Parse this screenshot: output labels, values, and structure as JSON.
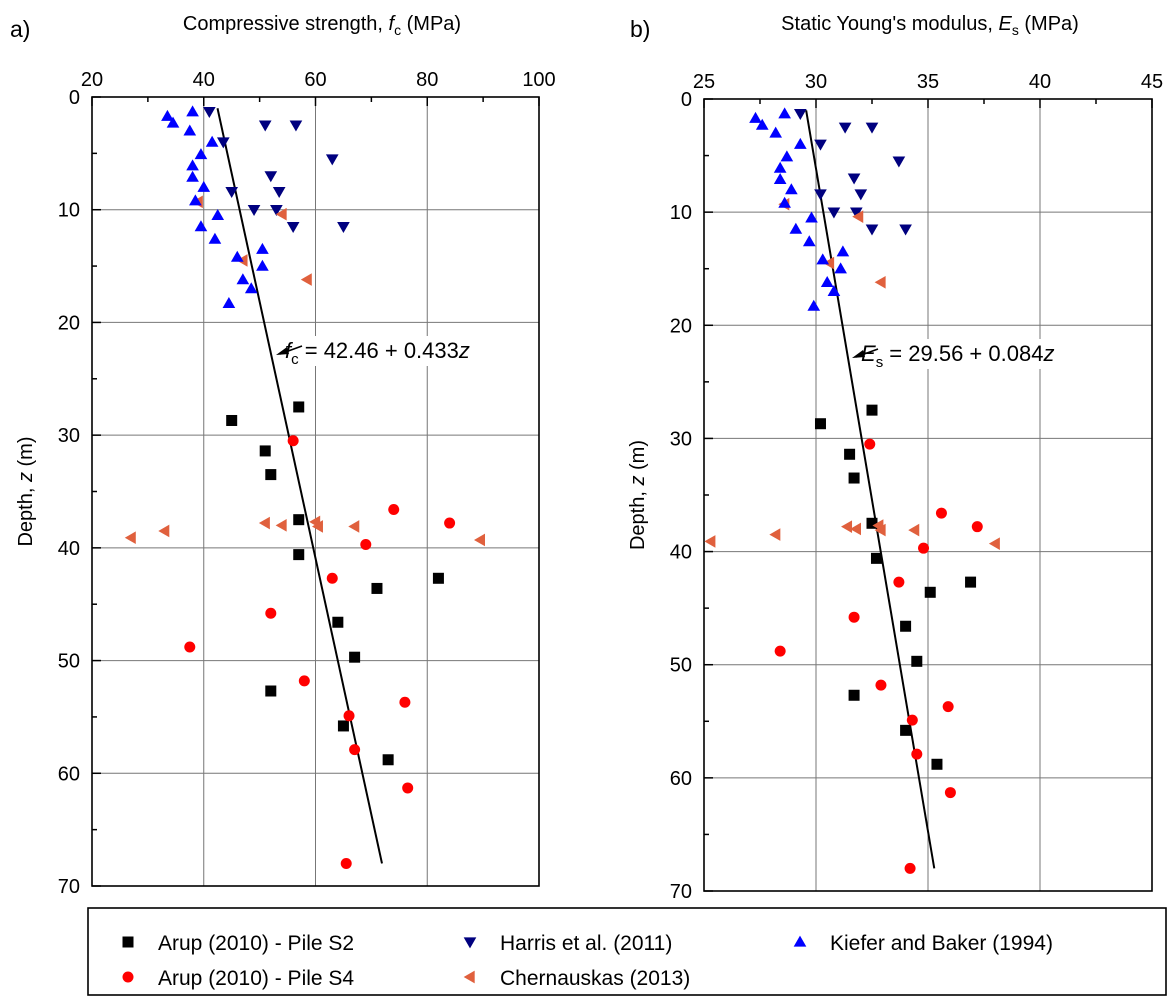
{
  "chart_data": [
    {
      "type": "scatter",
      "panel": "a)",
      "title": "",
      "xlabel_parts": [
        "Compressive strength, ",
        "f",
        "c",
        " (MPa)"
      ],
      "ylabel_parts": [
        "Depth, ",
        "z",
        " (m)"
      ],
      "x_axis_position": "top",
      "y_reversed": true,
      "xlim": [
        20,
        100
      ],
      "ylim": [
        0,
        70
      ],
      "xticks": [
        "20",
        "40",
        "60",
        "80",
        "100"
      ],
      "yticks": [
        "0",
        "10",
        "20",
        "30",
        "40",
        "50",
        "60",
        "70"
      ],
      "grid": true,
      "fit_line": {
        "x1": 42.46,
        "y1": 1,
        "x2": 71.9,
        "y2": 68
      },
      "equation_parts": [
        "f",
        "c",
        " = 42.46 + 0.433",
        "z"
      ],
      "series": [
        {
          "name": "Arup (2010) - Pile S2",
          "marker": "square",
          "color": "#000000",
          "points": [
            [
              57,
              27.5
            ],
            [
              45,
              28.7
            ],
            [
              51,
              31.4
            ],
            [
              52,
              33.5
            ],
            [
              57,
              37.5
            ],
            [
              57,
              40.6
            ],
            [
              82,
              42.7
            ],
            [
              71,
              43.6
            ],
            [
              64,
              46.6
            ],
            [
              67,
              49.7
            ],
            [
              52,
              52.7
            ],
            [
              65,
              55.8
            ],
            [
              73,
              58.8
            ]
          ]
        },
        {
          "name": "Arup (2010) - Pile S4",
          "marker": "circle",
          "color": "#ff0000",
          "points": [
            [
              56,
              30.5
            ],
            [
              74,
              36.6
            ],
            [
              84,
              37.8
            ],
            [
              69,
              39.7
            ],
            [
              63,
              42.7
            ],
            [
              52,
              45.8
            ],
            [
              37.5,
              48.8
            ],
            [
              58,
              51.8
            ],
            [
              76,
              53.7
            ],
            [
              66,
              54.9
            ],
            [
              67,
              57.9
            ],
            [
              76.5,
              61.3
            ],
            [
              65.5,
              68
            ]
          ]
        },
        {
          "name": "Harris et al. (2011)",
          "marker": "triangle-down",
          "color": "#00007f",
          "points": [
            [
              41,
              1.3
            ],
            [
              51,
              2.5
            ],
            [
              56.5,
              2.5
            ],
            [
              43.5,
              4.0
            ],
            [
              63,
              5.5
            ],
            [
              52,
              7.0
            ],
            [
              53.5,
              8.4
            ],
            [
              45,
              8.4
            ],
            [
              53,
              10
            ],
            [
              49,
              10
            ],
            [
              56,
              11.5
            ],
            [
              65,
              11.5
            ]
          ]
        },
        {
          "name": "Chernauskas (2013)",
          "marker": "triangle-left",
          "color": "#e0603d",
          "points": [
            [
              39,
              9.3
            ],
            [
              54,
              10.4
            ],
            [
              47,
              14.5
            ],
            [
              58.5,
              16.2
            ],
            [
              51,
              37.8
            ],
            [
              54,
              38
            ],
            [
              60,
              37.7
            ],
            [
              60.5,
              38.1
            ],
            [
              67,
              38.1
            ],
            [
              33,
              38.5
            ],
            [
              27,
              39.1
            ],
            [
              89.5,
              39.3
            ]
          ]
        },
        {
          "name": "Kiefer and Baker (1994)",
          "marker": "triangle-up",
          "color": "#0000ff",
          "points": [
            [
              38,
              1.3
            ],
            [
              33.5,
              1.7
            ],
            [
              34.5,
              2.3
            ],
            [
              37.5,
              3.0
            ],
            [
              41.5,
              4.0
            ],
            [
              39.5,
              5.1
            ],
            [
              38,
              6.1
            ],
            [
              38,
              7.1
            ],
            [
              40,
              8.0
            ],
            [
              38.5,
              9.2
            ],
            [
              42.5,
              10.5
            ],
            [
              39.5,
              11.5
            ],
            [
              42,
              12.6
            ],
            [
              50.5,
              13.5
            ],
            [
              46,
              14.2
            ],
            [
              50.5,
              15.0
            ],
            [
              47,
              16.2
            ],
            [
              48.5,
              17.0
            ],
            [
              44.5,
              18.3
            ]
          ]
        }
      ]
    },
    {
      "type": "scatter",
      "panel": "b)",
      "title": "",
      "xlabel_parts": [
        "Static Young's modulus, ",
        "E",
        "s",
        " (MPa)"
      ],
      "ylabel_parts": [
        "Depth, ",
        "z",
        " (m)"
      ],
      "x_axis_position": "top",
      "y_reversed": true,
      "xlim": [
        25,
        45
      ],
      "ylim": [
        0,
        70
      ],
      "xticks": [
        "25",
        "30",
        "35",
        "40",
        "45"
      ],
      "yticks": [
        "0",
        "10",
        "20",
        "30",
        "40",
        "50",
        "60",
        "70"
      ],
      "grid": true,
      "fit_line": {
        "x1": 29.56,
        "y1": 1,
        "x2": 35.28,
        "y2": 68
      },
      "equation_parts": [
        "E",
        "s",
        " = 29.56 + 0.084",
        "z"
      ],
      "series": [
        {
          "name": "Arup (2010) - Pile S2",
          "marker": "square",
          "color": "#000000",
          "points": [
            [
              32.5,
              27.5
            ],
            [
              30.2,
              28.7
            ],
            [
              31.5,
              31.4
            ],
            [
              31.7,
              33.5
            ],
            [
              32.5,
              37.5
            ],
            [
              32.7,
              40.6
            ],
            [
              36.9,
              42.7
            ],
            [
              35.1,
              43.6
            ],
            [
              34.0,
              46.6
            ],
            [
              34.5,
              49.7
            ],
            [
              31.7,
              52.7
            ],
            [
              34.0,
              55.8
            ],
            [
              35.4,
              58.8
            ]
          ]
        },
        {
          "name": "Arup (2010) - Pile S4",
          "marker": "circle",
          "color": "#ff0000",
          "points": [
            [
              32.4,
              30.5
            ],
            [
              35.6,
              36.6
            ],
            [
              37.2,
              37.8
            ],
            [
              34.8,
              39.7
            ],
            [
              33.7,
              42.7
            ],
            [
              31.7,
              45.8
            ],
            [
              28.4,
              48.8
            ],
            [
              32.9,
              51.8
            ],
            [
              35.9,
              53.7
            ],
            [
              34.3,
              54.9
            ],
            [
              34.5,
              57.9
            ],
            [
              36.0,
              61.3
            ],
            [
              34.2,
              68
            ]
          ]
        },
        {
          "name": "Harris et al. (2011)",
          "marker": "triangle-down",
          "color": "#00007f",
          "points": [
            [
              29.3,
              1.3
            ],
            [
              31.3,
              2.5
            ],
            [
              32.5,
              2.5
            ],
            [
              30.2,
              4.0
            ],
            [
              33.7,
              5.5
            ],
            [
              31.7,
              7.0
            ],
            [
              32.0,
              8.4
            ],
            [
              30.2,
              8.4
            ],
            [
              31.8,
              10
            ],
            [
              30.8,
              10
            ],
            [
              32.5,
              11.5
            ],
            [
              34.0,
              11.5
            ]
          ]
        },
        {
          "name": "Chernauskas (2013)",
          "marker": "triangle-left",
          "color": "#e0603d",
          "points": [
            [
              28.6,
              9.3
            ],
            [
              31.9,
              10.4
            ],
            [
              30.6,
              14.5
            ],
            [
              32.9,
              16.2
            ],
            [
              31.4,
              37.8
            ],
            [
              31.8,
              38
            ],
            [
              32.8,
              37.7
            ],
            [
              32.9,
              38.1
            ],
            [
              34.4,
              38.1
            ],
            [
              28.2,
              38.5
            ],
            [
              25.3,
              39.1
            ],
            [
              38.0,
              39.3
            ]
          ]
        },
        {
          "name": "Kiefer and Baker (1994)",
          "marker": "triangle-up",
          "color": "#0000ff",
          "points": [
            [
              28.6,
              1.3
            ],
            [
              27.3,
              1.7
            ],
            [
              27.6,
              2.3
            ],
            [
              28.2,
              3.0
            ],
            [
              29.3,
              4.0
            ],
            [
              28.7,
              5.1
            ],
            [
              28.4,
              6.1
            ],
            [
              28.4,
              7.1
            ],
            [
              28.9,
              8.0
            ],
            [
              28.6,
              9.2
            ],
            [
              29.8,
              10.5
            ],
            [
              29.1,
              11.5
            ],
            [
              29.7,
              12.6
            ],
            [
              31.2,
              13.5
            ],
            [
              30.3,
              14.2
            ],
            [
              31.1,
              15.0
            ],
            [
              30.5,
              16.2
            ],
            [
              30.8,
              17.0
            ],
            [
              29.9,
              18.3
            ]
          ]
        }
      ]
    }
  ],
  "legend": {
    "placement": "bottom",
    "items": [
      {
        "label": "Arup (2010) - Pile S2",
        "marker": "square",
        "color": "#000000"
      },
      {
        "label": "Harris et al. (2011)",
        "marker": "triangle-down",
        "color": "#00007f"
      },
      {
        "label": "Kiefer and Baker (1994)",
        "marker": "triangle-up",
        "color": "#0000ff"
      },
      {
        "label": "Arup (2010) - Pile S4",
        "marker": "circle",
        "color": "#ff0000"
      },
      {
        "label": "Chernauskas (2013)",
        "marker": "triangle-left",
        "color": "#e0603d"
      }
    ]
  }
}
